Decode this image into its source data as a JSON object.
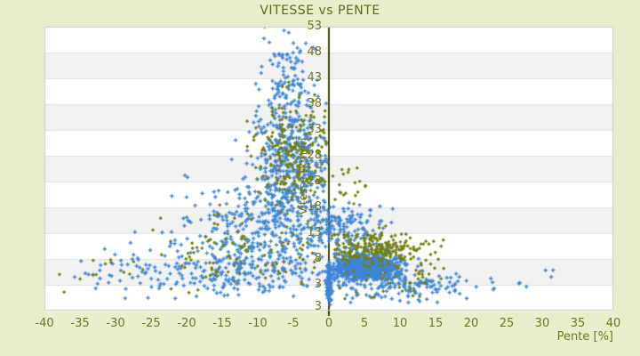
{
  "title": "VITESSE vs PENTE",
  "x_axis": {
    "title": "Pente [%]",
    "min": -40,
    "max": 40,
    "ticks": [
      -40,
      -35,
      -30,
      -25,
      -20,
      -15,
      -10,
      -5,
      0,
      5,
      10,
      15,
      20,
      25,
      30,
      35,
      40
    ]
  },
  "y_axis": {
    "title": "Vitesse [km/h]",
    "top_value": 53,
    "step": 5,
    "tick_labels": [
      53,
      48,
      43,
      38,
      33,
      28,
      23,
      18,
      13,
      8,
      3
    ],
    "min_label": "3"
  },
  "colors": {
    "background": "#E8EECC",
    "band_white": "#FFFFFF",
    "band_gray": "#F2F2F2",
    "gridline": "#E3E3E3",
    "plot_border": "#CCCCCC",
    "zero_line": "#3C4403",
    "series_blue": "#3E86D8",
    "series_olive": "#75800A",
    "title_text": "#5A6C15",
    "tick_text": "#6D781D"
  },
  "chart_data": {
    "type": "scatter",
    "title": "VITESSE vs PENTE",
    "xlabel": "Pente [%]",
    "ylabel": "Vitesse [km/h]",
    "xlim": [
      -40,
      40
    ],
    "y_ticks": [
      53,
      48,
      43,
      38,
      33,
      28,
      23,
      18,
      13,
      8,
      3
    ],
    "grid": "horizontal-bands-alternating",
    "legend": false,
    "zero_line_x": 0,
    "series": [
      {
        "key": "blue",
        "marker": "plus",
        "color": "#3E86D8"
      },
      {
        "key": "olive",
        "marker": "diamond",
        "color": "#75800A"
      }
    ],
    "clusters": [
      {
        "series": "blue",
        "n": 480,
        "p": [
          -5.5,
          2.8
        ],
        "v": [
          27,
          7
        ],
        "p_clip": [
          -20,
          -0.2
        ],
        "v_clip": [
          8,
          53.5
        ]
      },
      {
        "series": "blue",
        "n": 70,
        "p": [
          -5.8,
          1.8
        ],
        "v": [
          44,
          5
        ],
        "p_clip": [
          -14,
          -0.5
        ],
        "v_clip": [
          36,
          53.5
        ]
      },
      {
        "series": "blue",
        "n": 300,
        "p": [
          -10,
          5.5
        ],
        "v": [
          13,
          5
        ],
        "p_clip": [
          -33,
          -0.2
        ],
        "v_clip": [
          2,
          28
        ]
      },
      {
        "series": "blue",
        "n": 200,
        "p": [
          -14,
          8
        ],
        "v": [
          5.5,
          2.8
        ],
        "p_clip": [
          -39,
          -0.3
        ],
        "v_clip": [
          0,
          12
        ]
      },
      {
        "series": "blue",
        "n": 30,
        "p": [
          -29,
          5
        ],
        "v": [
          5.5,
          2
        ],
        "p_clip": [
          -39,
          -18
        ],
        "v_clip": [
          1,
          10
        ]
      },
      {
        "series": "blue",
        "n": 650,
        "p": [
          5,
          2.2
        ],
        "v": [
          6.3,
          1.2
        ],
        "p_clip": [
          0.4,
          11
        ],
        "v_clip": [
          3.8,
          9
        ]
      },
      {
        "series": "blue",
        "n": 180,
        "p": [
          5.5,
          3.5
        ],
        "v": [
          6.5,
          2.2
        ],
        "p_clip": [
          0.3,
          14
        ],
        "v_clip": [
          2,
          12
        ]
      },
      {
        "series": "blue",
        "n": 130,
        "p": [
          10,
          5.5
        ],
        "v": [
          2.8,
          1.6
        ],
        "p_clip": [
          0,
          23
        ],
        "v_clip": [
          -0.8,
          6
        ]
      },
      {
        "series": "blue",
        "n": 10,
        "p": [
          27,
          5
        ],
        "v": [
          3,
          1.5
        ],
        "p_clip": [
          20,
          35.5
        ],
        "v_clip": [
          1,
          8
        ]
      },
      {
        "series": "blue",
        "n": 90,
        "p": [
          0,
          0.18
        ],
        "v": [
          3,
          2.8
        ],
        "p_clip": [
          -0.5,
          0.5
        ],
        "v_clip": [
          -1,
          7.5
        ]
      },
      {
        "series": "blue",
        "n": 150,
        "p": [
          1.5,
          3
        ],
        "v": [
          14.5,
          2.5
        ],
        "p_clip": [
          -4,
          9
        ],
        "v_clip": [
          10,
          21
        ]
      },
      {
        "series": "olive",
        "n": 210,
        "p": [
          -5.2,
          2.6
        ],
        "v": [
          28,
          5.5
        ],
        "p_clip": [
          -16,
          -0.3
        ],
        "v_clip": [
          12,
          45
        ]
      },
      {
        "series": "olive",
        "n": 90,
        "p": [
          -11,
          6
        ],
        "v": [
          9,
          4
        ],
        "p_clip": [
          -36,
          -0.3
        ],
        "v_clip": [
          2,
          20
        ]
      },
      {
        "series": "olive",
        "n": 20,
        "p": [
          -27,
          7
        ],
        "v": [
          5,
          2
        ],
        "p_clip": [
          -39,
          -15
        ],
        "v_clip": [
          1,
          9
        ]
      },
      {
        "series": "olive",
        "n": 230,
        "p": [
          6.5,
          4
        ],
        "v": [
          10,
          1.8
        ],
        "p_clip": [
          0.4,
          18.5
        ],
        "v_clip": [
          6.5,
          15
        ]
      },
      {
        "series": "olive",
        "n": 45,
        "p": [
          9,
          5.5
        ],
        "v": [
          4,
          2
        ],
        "p_clip": [
          0.5,
          20
        ],
        "v_clip": [
          0,
          7
        ]
      },
      {
        "series": "olive",
        "n": 18,
        "p": [
          3,
          2
        ],
        "v": [
          21,
          3.5
        ],
        "p_clip": [
          0.3,
          7
        ],
        "v_clip": [
          15,
          29
        ]
      }
    ]
  }
}
